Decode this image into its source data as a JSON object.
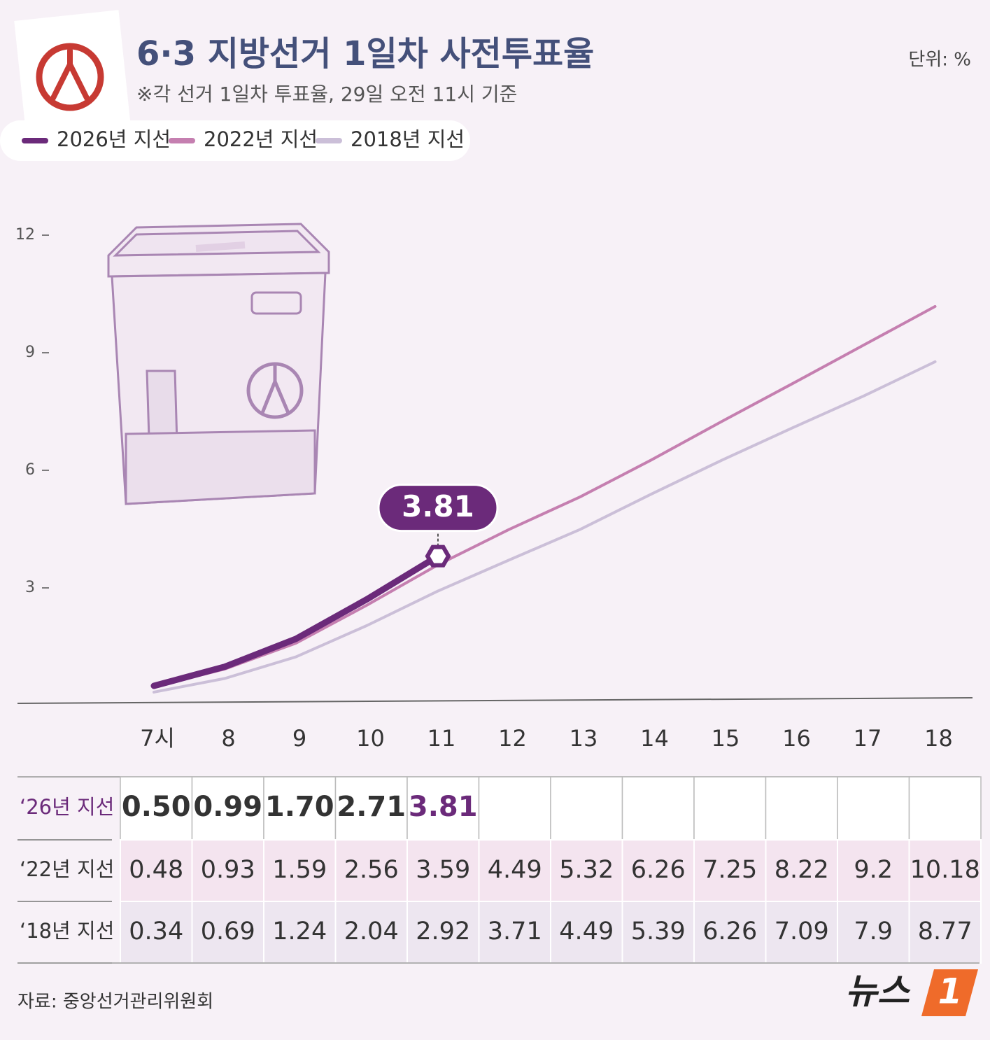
{
  "title": "6·3 지방선거 1일차 사전투표율",
  "subtitle": "※각 선거 1일차 투표율, 29일 오전 11시 기준",
  "unit": "단위: %",
  "source": "자료: 중앙선거관리위원회",
  "logo_text": "뉴스",
  "logo_mark": "1",
  "chart_data": {
    "type": "line",
    "categories": [
      "7시",
      "8",
      "9",
      "10",
      "11",
      "12",
      "13",
      "14",
      "15",
      "16",
      "17",
      "18"
    ],
    "series": [
      {
        "name": "2026년 지선",
        "row_label": "‘26년 지선",
        "color": "#6b2a7a",
        "values": [
          0.5,
          0.99,
          1.7,
          2.71,
          3.81,
          null,
          null,
          null,
          null,
          null,
          null,
          null
        ],
        "value_labels": [
          "0.50",
          "0.99",
          "1.70",
          "2.71",
          "3.81",
          null,
          null,
          null,
          null,
          null,
          null,
          null
        ]
      },
      {
        "name": "2022년 지선",
        "row_label": "‘22년 지선",
        "color": "#c57fb0",
        "values": [
          0.48,
          0.93,
          1.59,
          2.56,
          3.59,
          4.49,
          5.32,
          6.26,
          7.25,
          8.22,
          9.2,
          10.18
        ]
      },
      {
        "name": "2018년 지선",
        "row_label": "‘18년 지선",
        "color": "#cbbfd8",
        "values": [
          0.34,
          0.69,
          1.24,
          2.04,
          2.92,
          3.71,
          4.49,
          5.39,
          6.26,
          7.09,
          7.9,
          8.77
        ]
      }
    ],
    "ylim": [
      0,
      12
    ],
    "yticks": [
      3,
      6,
      9,
      12
    ],
    "grid": false
  }
}
